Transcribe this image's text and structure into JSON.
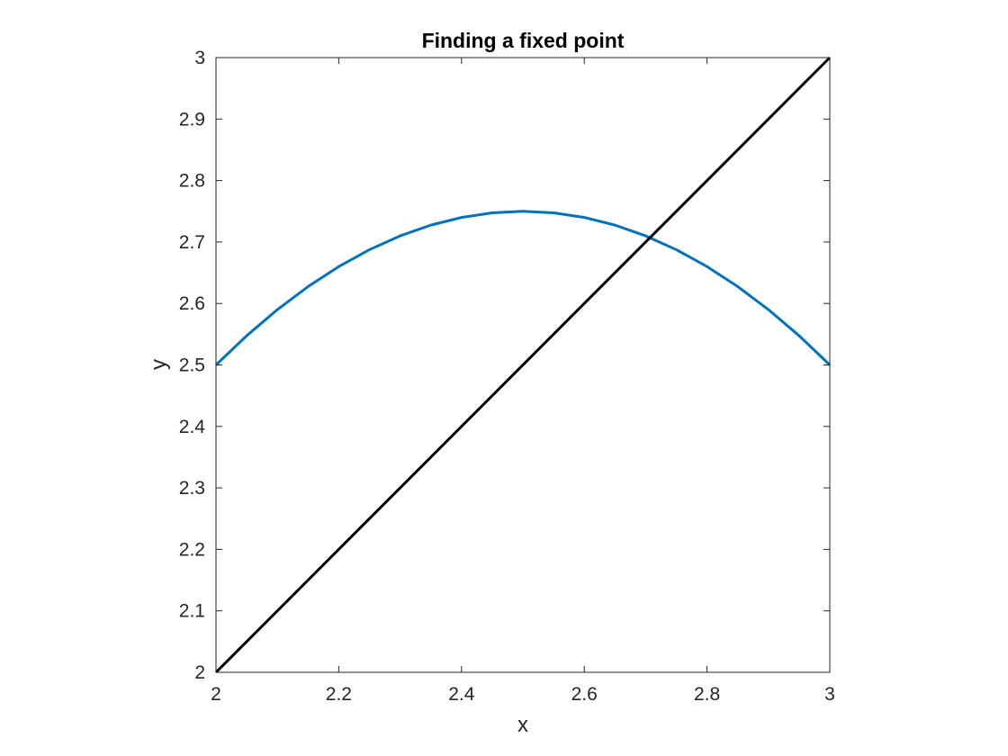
{
  "chart_data": {
    "type": "line",
    "title": "Finding a fixed point",
    "xlabel": "x",
    "ylabel": "y",
    "xlim": [
      2,
      3
    ],
    "ylim": [
      2,
      3
    ],
    "xticks": [
      "2",
      "2.2",
      "2.4",
      "2.6",
      "2.8",
      "3"
    ],
    "yticks": [
      "2",
      "2.1",
      "2.2",
      "2.3",
      "2.4",
      "2.5",
      "2.6",
      "2.7",
      "2.8",
      "2.9",
      "3"
    ],
    "grid": false,
    "series": [
      {
        "color": "#0072BD",
        "x": [
          2.0,
          2.05,
          2.1,
          2.15,
          2.2,
          2.25,
          2.3,
          2.35,
          2.4,
          2.45,
          2.5,
          2.55,
          2.6,
          2.65,
          2.7,
          2.75,
          2.8,
          2.85,
          2.9,
          2.95,
          3.0
        ],
        "y": [
          2.5,
          2.5475,
          2.59,
          2.6275,
          2.66,
          2.6875,
          2.71,
          2.7275,
          2.74,
          2.7475,
          2.75,
          2.7475,
          2.74,
          2.7275,
          2.71,
          2.6875,
          2.66,
          2.6275,
          2.59,
          2.5475,
          2.5
        ]
      },
      {
        "color": "#000000",
        "x": [
          2.0,
          3.0
        ],
        "y": [
          2.0,
          3.0
        ]
      }
    ]
  }
}
